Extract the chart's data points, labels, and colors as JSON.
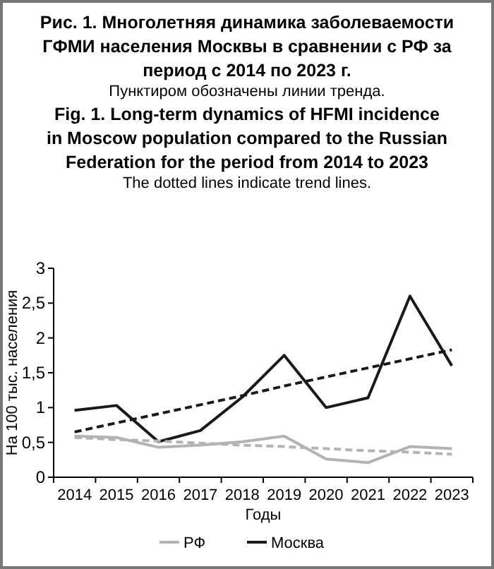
{
  "chart_data": {
    "type": "line",
    "title": "Рис. 1. Многолетняя динамика заболеваемости ГФМИ населения Москвы в сравнении с РФ за период с 2014 по 2023 г.",
    "subtitle": "Пунктиром обозначены линии тренда.",
    "annotations": [
      "Fig. 1. Long-term dynamics of HFMI incidence in Moscow population compared to the Russian Federation for the period from 2014 to 2023",
      "The dotted lines indicate trend lines."
    ],
    "xlabel": "Годы",
    "ylabel": "На 100 тыс. населения",
    "categories": [
      "2014",
      "2015",
      "2016",
      "2017",
      "2018",
      "2019",
      "2020",
      "2021",
      "2022",
      "2023"
    ],
    "series": [
      {
        "name": "РФ",
        "color": "#b3b3b3",
        "values": [
          0.59,
          0.57,
          0.43,
          0.46,
          0.51,
          0.59,
          0.26,
          0.21,
          0.44,
          0.41
        ]
      },
      {
        "name": "Москва",
        "color": "#1a1a1a",
        "values": [
          0.96,
          1.03,
          0.51,
          0.67,
          1.15,
          1.75,
          1.0,
          1.14,
          2.6,
          1.6
        ]
      },
      {
        "color": "#b3b3b3",
        "line_style": "dashed",
        "values": [
          0.57,
          0.54,
          0.52,
          0.49,
          0.46,
          0.44,
          0.41,
          0.38,
          0.36,
          0.33
        ]
      },
      {
        "color": "#1a1a1a",
        "line_style": "dashed",
        "values": [
          0.65,
          0.78,
          0.91,
          1.04,
          1.17,
          1.31,
          1.44,
          1.57,
          1.7,
          1.83
        ]
      }
    ],
    "ylim": [
      0,
      3
    ],
    "yticks": [
      0,
      {
        "value": 0.5,
        "label": "0,5"
      },
      1,
      {
        "value": 1.5,
        "label": "1,5"
      },
      2,
      {
        "value": 2.5,
        "label": "2,5"
      },
      3
    ],
    "grid": false,
    "legend": "bottom",
    "line_style": "solid",
    "marker": "none"
  }
}
